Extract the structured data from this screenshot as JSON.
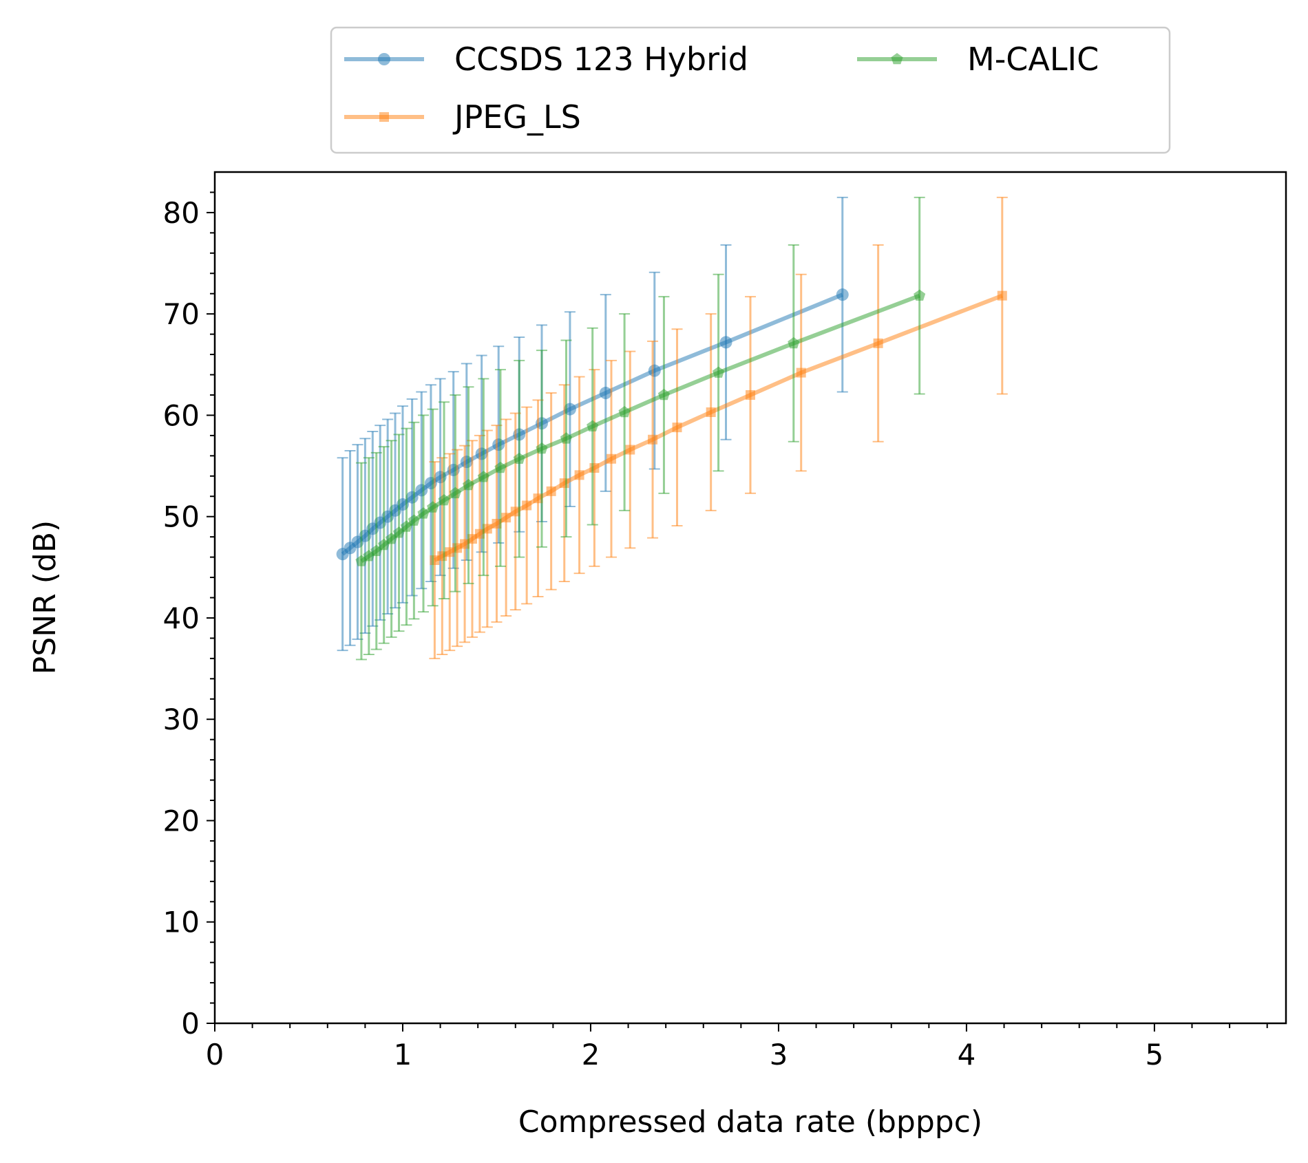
{
  "chart_data": {
    "type": "scatter",
    "title": "",
    "xlabel": "Compressed data rate (bpppc)",
    "ylabel": "PSNR (dB)",
    "xlim": [
      0,
      5.7
    ],
    "ylim": [
      0,
      84
    ],
    "xticks": [
      0,
      1,
      2,
      3,
      4,
      5
    ],
    "yticks": [
      0,
      10,
      20,
      30,
      40,
      50,
      60,
      70,
      80
    ],
    "grid": false,
    "legend": {
      "placement": "top-center-outside",
      "columns": 2
    },
    "series": [
      {
        "name": "CCSDS 123 Hybrid",
        "color": "#1f77b4",
        "marker": "circle",
        "x": [
          0.68,
          0.72,
          0.76,
          0.8,
          0.84,
          0.88,
          0.92,
          0.96,
          1.0,
          1.05,
          1.1,
          1.15,
          1.2,
          1.27,
          1.34,
          1.42,
          1.51,
          1.62,
          1.74,
          1.89,
          2.08,
          2.34,
          2.72,
          3.34
        ],
        "y": [
          46.3,
          46.9,
          47.5,
          48.1,
          48.8,
          49.4,
          50.0,
          50.6,
          51.2,
          51.9,
          52.6,
          53.3,
          53.9,
          54.6,
          55.4,
          56.2,
          57.1,
          58.1,
          59.2,
          60.6,
          62.2,
          64.4,
          67.2,
          71.9
        ],
        "err": [
          9.5,
          9.6,
          9.6,
          9.6,
          9.6,
          9.6,
          9.6,
          9.6,
          9.7,
          9.7,
          9.7,
          9.7,
          9.7,
          9.7,
          9.7,
          9.7,
          9.7,
          9.6,
          9.7,
          9.6,
          9.7,
          9.7,
          9.6,
          9.6
        ]
      },
      {
        "name": "JPEG_LS",
        "color": "#ff7f0e",
        "marker": "square",
        "x": [
          1.17,
          1.21,
          1.25,
          1.29,
          1.33,
          1.37,
          1.41,
          1.45,
          1.5,
          1.55,
          1.6,
          1.66,
          1.72,
          1.79,
          1.86,
          1.94,
          2.02,
          2.11,
          2.21,
          2.33,
          2.46,
          2.64,
          2.85,
          3.12,
          3.53,
          4.19
        ],
        "y": [
          45.7,
          46.1,
          46.5,
          46.9,
          47.3,
          47.8,
          48.3,
          48.8,
          49.3,
          49.9,
          50.5,
          51.1,
          51.8,
          52.5,
          53.3,
          54.1,
          54.8,
          55.7,
          56.6,
          57.6,
          58.8,
          60.3,
          62.0,
          64.2,
          67.1,
          71.8
        ],
        "err": [
          9.7,
          9.7,
          9.7,
          9.7,
          9.7,
          9.7,
          9.7,
          9.7,
          9.7,
          9.7,
          9.7,
          9.7,
          9.7,
          9.7,
          9.7,
          9.7,
          9.7,
          9.7,
          9.7,
          9.7,
          9.7,
          9.7,
          9.7,
          9.7,
          9.7,
          9.7
        ]
      },
      {
        "name": "M-CALIC",
        "color": "#2ca02c",
        "marker": "pentagon",
        "x": [
          0.78,
          0.82,
          0.86,
          0.9,
          0.94,
          0.98,
          1.02,
          1.06,
          1.11,
          1.16,
          1.22,
          1.28,
          1.35,
          1.43,
          1.52,
          1.62,
          1.74,
          1.87,
          2.01,
          2.18,
          2.39,
          2.68,
          3.08,
          3.75
        ],
        "y": [
          45.6,
          46.1,
          46.6,
          47.2,
          47.8,
          48.4,
          49.0,
          49.6,
          50.3,
          50.9,
          51.6,
          52.3,
          53.1,
          53.9,
          54.8,
          55.7,
          56.7,
          57.7,
          58.9,
          60.3,
          62.0,
          64.2,
          67.1,
          71.8
        ],
        "err": [
          9.7,
          9.7,
          9.7,
          9.7,
          9.7,
          9.7,
          9.7,
          9.7,
          9.7,
          9.7,
          9.7,
          9.7,
          9.7,
          9.7,
          9.7,
          9.7,
          9.7,
          9.7,
          9.7,
          9.7,
          9.7,
          9.7,
          9.7,
          9.7
        ]
      }
    ]
  }
}
